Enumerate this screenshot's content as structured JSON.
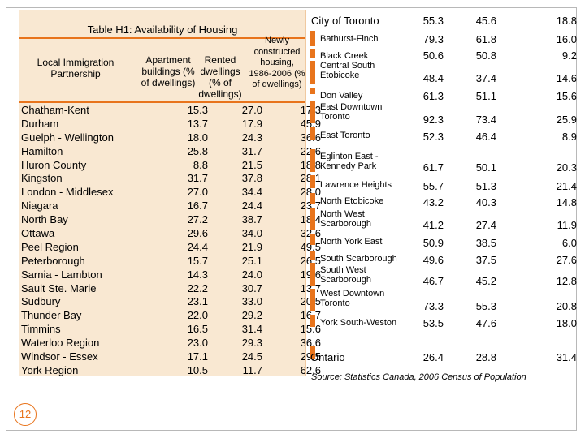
{
  "left_table": {
    "title": "Table H1: Availability of Housing",
    "headers": {
      "partnership": "Local Immigration Partnership",
      "apartment": "Apartment buildings (% of dwellings)",
      "rented": "Rented dwellings (% of dwellings)",
      "newly": "Newly constructed housing, 1986-2006 (% of dwellings)"
    },
    "rows": [
      {
        "name": "Chatham-Kent",
        "apt": "15.3",
        "rent": "27.0",
        "new": "17.3"
      },
      {
        "name": "Durham",
        "apt": "13.7",
        "rent": "17.9",
        "new": "45.9"
      },
      {
        "name": "Guelph - Wellington",
        "apt": "18.0",
        "rent": "24.3",
        "new": "36.6"
      },
      {
        "name": "Hamilton",
        "apt": "25.8",
        "rent": "31.7",
        "new": "22.6"
      },
      {
        "name": "Huron County",
        "apt": "8.8",
        "rent": "21.5",
        "new": "18.8"
      },
      {
        "name": "Kingston",
        "apt": "31.7",
        "rent": "37.8",
        "new": "28.1"
      },
      {
        "name": "London - Middlesex",
        "apt": "27.0",
        "rent": "34.4",
        "new": "28.0"
      },
      {
        "name": "Niagara",
        "apt": "16.7",
        "rent": "24.4",
        "new": "23.7"
      },
      {
        "name": "North Bay",
        "apt": "27.2",
        "rent": "38.7",
        "new": "18.4"
      },
      {
        "name": "Ottawa",
        "apt": "29.6",
        "rent": "34.0",
        "new": "32.6"
      },
      {
        "name": "Peel Region",
        "apt": "24.4",
        "rent": "21.9",
        "new": "49.5"
      },
      {
        "name": "Peterborough",
        "apt": "15.7",
        "rent": "25.1",
        "new": "26.5"
      },
      {
        "name": "Sarnia - Lambton",
        "apt": "14.3",
        "rent": "24.0",
        "new": "19.6"
      },
      {
        "name": "Sault Ste. Marie",
        "apt": "22.2",
        "rent": "30.7",
        "new": "13.7"
      },
      {
        "name": "Sudbury",
        "apt": "23.1",
        "rent": "33.0",
        "new": "20.5"
      },
      {
        "name": "Thunder Bay",
        "apt": "22.0",
        "rent": "29.2",
        "new": "16.7"
      },
      {
        "name": "Timmins",
        "apt": "16.5",
        "rent": "31.4",
        "new": "15.6"
      },
      {
        "name": "Waterloo Region",
        "apt": "23.0",
        "rent": "29.3",
        "new": "36.6"
      },
      {
        "name": "Windsor - Essex",
        "apt": "17.1",
        "rent": "24.5",
        "new": "29.5"
      },
      {
        "name": "York  Region",
        "apt": "10.5",
        "rent": "11.7",
        "new": "62.6"
      }
    ]
  },
  "right_table": {
    "city_label": "City of Toronto",
    "city_values": [
      "55.3",
      "45.6",
      "18.8"
    ],
    "rows": [
      {
        "name": "Bathurst-Finch",
        "a": "79.3",
        "b": "61.8",
        "c": "16.0"
      },
      {
        "name": "Black Creek",
        "a": "50.6",
        "b": "50.8",
        "c": "9.2"
      },
      {
        "name": "Central South Etobicoke",
        "a": "48.4",
        "b": "37.4",
        "c": "14.6"
      },
      {
        "name": "Don Valley",
        "a": "61.3",
        "b": "51.1",
        "c": "15.6"
      },
      {
        "name": "East Downtown Toronto",
        "a": "92.3",
        "b": "73.4",
        "c": "25.9"
      },
      {
        "name": "East Toronto",
        "a": "52.3",
        "b": "46.4",
        "c": "8.9"
      },
      {
        "name": "Eglinton East - Kennedy Park",
        "a": "61.7",
        "b": "50.1",
        "c": "20.3"
      },
      {
        "name": "Lawrence Heights",
        "a": "55.7",
        "b": "51.3",
        "c": "21.4"
      },
      {
        "name": "North Etobicoke",
        "a": "43.2",
        "b": "40.3",
        "c": "14.8"
      },
      {
        "name": "North West Scarborough",
        "a": "41.2",
        "b": "27.4",
        "c": "11.9"
      },
      {
        "name": "North York East",
        "a": "50.9",
        "b": "38.5",
        "c": "6.0"
      },
      {
        "name": "South Scarborough",
        "a": "49.6",
        "b": "37.5",
        "c": "27.6"
      },
      {
        "name": "South West Scarborough",
        "a": "46.7",
        "b": "45.2",
        "c": "12.8"
      },
      {
        "name": "West Downtown Toronto",
        "a": "73.3",
        "b": "55.3",
        "c": "20.8"
      },
      {
        "name": "York South-Weston",
        "a": "53.5",
        "b": "47.6",
        "c": "18.0"
      }
    ],
    "ontario_label": "Ontario",
    "ontario_values": [
      "26.4",
      "28.8",
      "31.4"
    ],
    "source": "Source: Statistics Canada, 2006 Census of Population"
  },
  "page_number": "12",
  "colors": {
    "accent": "#e8741c",
    "panel": "#f9e8d2"
  }
}
